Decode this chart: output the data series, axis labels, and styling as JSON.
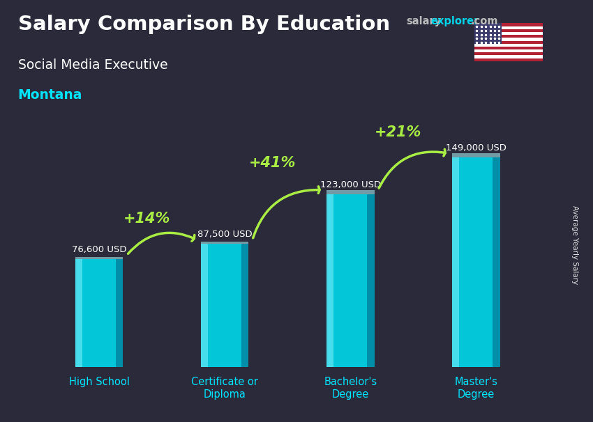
{
  "title_main": "Salary Comparison By Education",
  "title_sub": "Social Media Executive",
  "title_location": "Montana",
  "categories": [
    "High School",
    "Certificate or\nDiploma",
    "Bachelor's\nDegree",
    "Master's\nDegree"
  ],
  "values": [
    76600,
    87500,
    123000,
    149000
  ],
  "value_labels": [
    "76,600 USD",
    "87,500 USD",
    "123,000 USD",
    "149,000 USD"
  ],
  "pct_labels": [
    "+14%",
    "+41%",
    "+21%"
  ],
  "arrow_color": "#aaee44",
  "text_color_white": "#ffffff",
  "text_color_cyan": "#00e5ff",
  "text_color_green": "#aaee44",
  "ylabel_side": "Average Yearly Salary",
  "ylim_max": 180000,
  "bar_width": 0.38,
  "bg_color": "#2a2a3a"
}
